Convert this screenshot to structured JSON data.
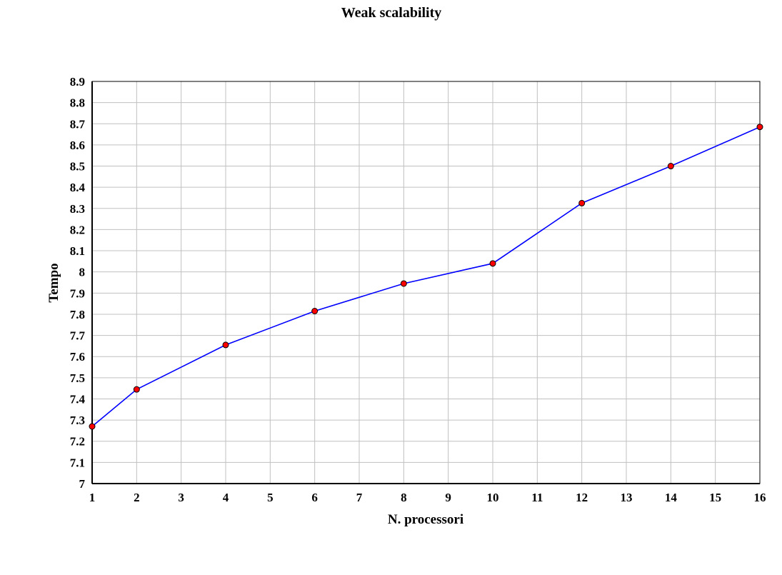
{
  "chart_data": {
    "type": "line",
    "title": "Weak scalability",
    "xlabel": "N. processori",
    "ylabel": "Tempo",
    "x_ticks": [
      "1",
      "2",
      "3",
      "4",
      "5",
      "6",
      "7",
      "8",
      "9",
      "10",
      "11",
      "12",
      "13",
      "14",
      "15",
      "16"
    ],
    "y_ticks": [
      "7",
      "7.1",
      "7.2",
      "7.3",
      "7.4",
      "7.5",
      "7.6",
      "7.7",
      "7.8",
      "7.9",
      "8",
      "8.1",
      "8.2",
      "8.3",
      "8.4",
      "8.5",
      "8.6",
      "8.7",
      "8.8",
      "8.9"
    ],
    "ylim": [
      7,
      8.9
    ],
    "grid": true,
    "series": [
      {
        "x": [
          "1",
          "2",
          "4",
          "6",
          "8",
          "10",
          "12",
          "14",
          "16"
        ],
        "y": [
          7.27,
          7.445,
          7.655,
          7.815,
          7.945,
          8.04,
          8.325,
          8.5,
          8.685
        ],
        "line_color": "#0000ff",
        "marker_color": "#ff0000"
      }
    ]
  }
}
